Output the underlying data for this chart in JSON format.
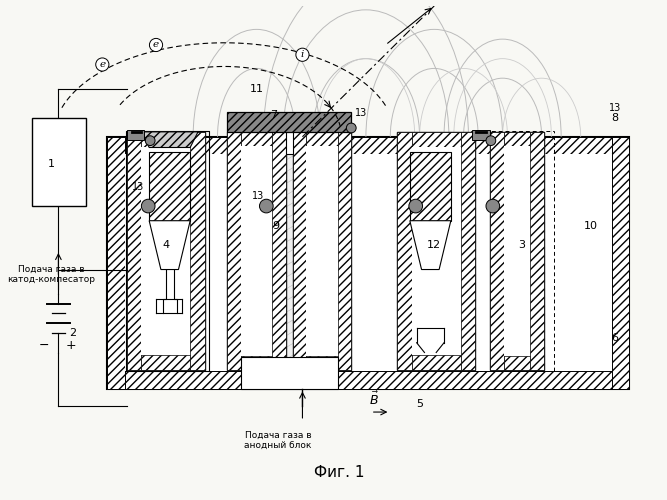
{
  "bg_color": "#f8f8f4",
  "fig_label": "Фиг. 1",
  "gas_cathode": "Подача газа в\nкатод-компесатор",
  "gas_anode": "Подача газа в\nанодный блок"
}
